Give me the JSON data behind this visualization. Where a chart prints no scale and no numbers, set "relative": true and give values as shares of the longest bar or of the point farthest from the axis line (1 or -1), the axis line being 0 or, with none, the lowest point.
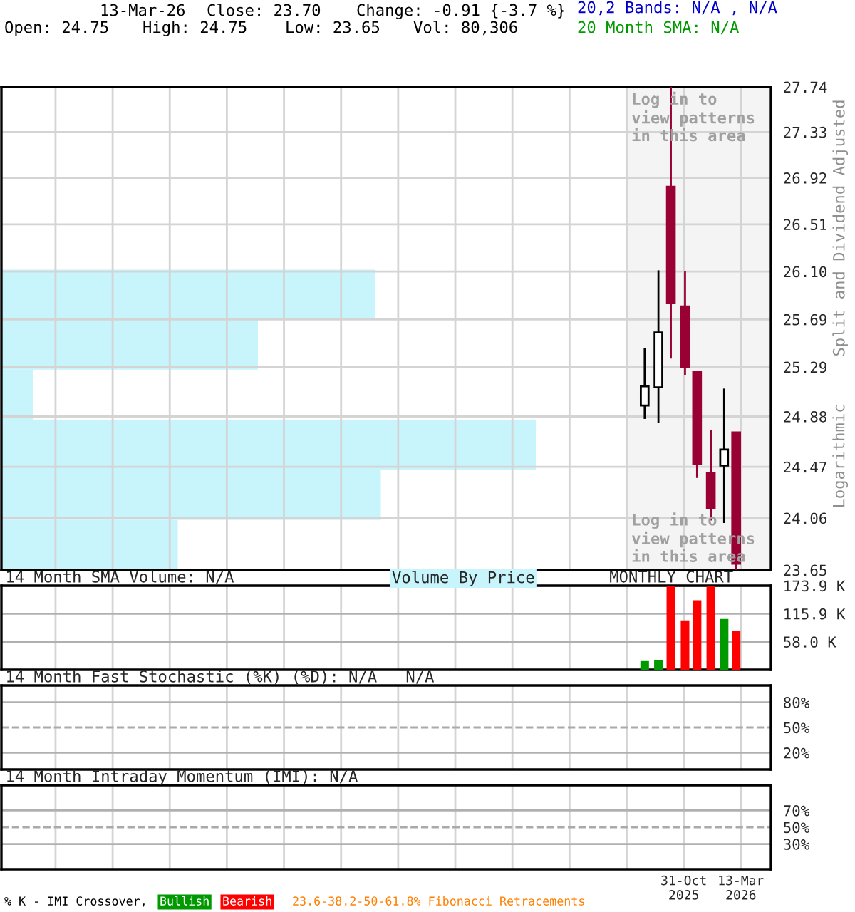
{
  "chart_data": [
    {
      "type": "candlestick",
      "log": true,
      "grid": true,
      "tick_labels": "y",
      "x": [
        "2025-08-01",
        "2025-09-02",
        "2025-10-01",
        "2025-11-03",
        "2025-12-01",
        "2026-01-02",
        "2026-02-02",
        "2026-03-02"
      ],
      "ohlc": [
        [
          24.97,
          25.45,
          24.86,
          25.13
        ],
        [
          25.12,
          26.11,
          24.83,
          25.58
        ],
        [
          26.84,
          27.74,
          25.36,
          25.83
        ],
        [
          25.8,
          26.1,
          25.22,
          25.29
        ],
        [
          25.25,
          25.25,
          24.38,
          24.49
        ],
        [
          24.42,
          24.77,
          24.04,
          24.14
        ],
        [
          24.48,
          25.11,
          24.02,
          24.61
        ],
        [
          24.75,
          24.75,
          23.65,
          23.7
        ]
      ],
      "colors": [
        "#000000",
        "#000000",
        "#990033",
        "#990033",
        "#990033",
        "#990033",
        "#000000",
        "#990033"
      ],
      "ylim": [
        23.65,
        27.74
      ],
      "yticks": [
        23.65,
        24.06,
        24.47,
        24.88,
        25.29,
        {
          "value": 25.69,
          "label": "25.69"
        },
        {
          "value": 26.1,
          "label": "26.10"
        },
        26.51,
        26.92,
        27.33,
        27.74
      ],
      "xlim": [
        "2021-06-25",
        "2026-05-22"
      ],
      "xticks": [
        {
          "value": "2021-10-29",
          "label": null
        },
        {
          "value": "2022-03-11",
          "label": null
        },
        {
          "value": "2022-07-22",
          "label": null
        },
        {
          "value": "2022-12-02",
          "label": null
        },
        {
          "value": "2023-04-14",
          "label": null
        },
        {
          "value": "2023-08-25",
          "label": null
        },
        {
          "value": "2024-01-05",
          "label": null
        },
        {
          "value": "2024-05-17",
          "label": null
        },
        {
          "value": "2024-09-27",
          "label": null
        },
        {
          "value": "2025-02-07",
          "label": null
        },
        {
          "value": "2025-06-20",
          "label": null
        },
        {
          "value": "2025-10-31",
          "label": null
        },
        {
          "value": "2026-03-13",
          "label": null
        }
      ],
      "ylabel": "Split and Dividend Adjusted",
      "bands": [
        {
          "axis": "x",
          "from": "2025-06-23",
          "to": "2026-05-22",
          "label": "Log in to\nview patterns\nin this area",
          "color": "#f4f4f4"
        }
      ],
      "annotations": [
        "13-Mar-26",
        "Close: 23.70",
        "Change: -0.91 {-3.7 %}",
        "20,2 Bands: N/A , N/A",
        "Open: 24.75",
        "High: 24.75",
        "Low: 23.65",
        "Vol: 80,306",
        "20 Month SMA: N/A",
        "Logarithmic",
        "Log in to\nview patterns\nin this area"
      ]
    },
    {
      "type": "bar",
      "orientation": "horizontal",
      "relative": true,
      "title": "Volume By Price",
      "color": "#c8f4fc",
      "categories": [
        null,
        null,
        null,
        null,
        null,
        null
      ],
      "values": [
        0.7,
        0.48,
        0.06,
        1,
        0.71,
        0.33
      ]
    },
    {
      "type": "bar",
      "title": "14 Month SMA Volume: N/A",
      "grid": true,
      "tick_labels": "y",
      "x": [
        "2025-08-01",
        "2025-09-02",
        "2025-10-01",
        "2025-11-03",
        "2025-12-01",
        "2026-01-02",
        "2026-02-02",
        "2026-03-02"
      ],
      "values": [
        18,
        20,
        173.9,
        102,
        143.6,
        173.9,
        105,
        80.3
      ],
      "colors": [
        "#009900",
        "#009900",
        "#ff0000",
        "#ff0000",
        "#ff0000",
        "#ff0000",
        "#009900",
        "#ff0000"
      ],
      "ylim": [
        0,
        173.9
      ],
      "yticks": [
        {
          "value": 58.0,
          "label": "58.0 K"
        },
        {
          "value": 115.9,
          "label": "115.9 K"
        },
        {
          "value": 173.9,
          "label": "173.9 K"
        }
      ],
      "xlim": [
        "2021-06-25",
        "2026-05-22"
      ],
      "xticks": [
        {
          "value": "2021-10-29",
          "label": null
        },
        {
          "value": "2022-03-11",
          "label": null
        },
        {
          "value": "2022-07-22",
          "label": null
        },
        {
          "value": "2022-12-02",
          "label": null
        },
        {
          "value": "2023-04-14",
          "label": null
        },
        {
          "value": "2023-08-25",
          "label": null
        },
        {
          "value": "2024-01-05",
          "label": null
        },
        {
          "value": "2024-05-17",
          "label": null
        },
        {
          "value": "2024-09-27",
          "label": null
        },
        {
          "value": "2025-02-07",
          "label": null
        },
        {
          "value": "2025-06-20",
          "label": null
        },
        {
          "value": "2025-10-31",
          "label": null
        },
        {
          "value": "2026-03-13",
          "label": null
        }
      ],
      "annotations": [
        "MONTHLY CHART"
      ]
    },
    {
      "type": "line",
      "title": "14 Month Fast Stochastic (%K) (%D): N/A   N/A",
      "grid": true,
      "tick_labels": "y",
      "ylim": [
        0,
        100
      ],
      "yticks": [
        {
          "value": 20,
          "label": "20%"
        },
        {
          "value": 50,
          "label": "50%"
        },
        {
          "value": 80,
          "label": "80%"
        }
      ],
      "xlim": [
        "2021-06-25",
        "2026-05-22"
      ],
      "xticks": [
        {
          "value": "2021-10-29",
          "label": null
        },
        {
          "value": "2022-03-11",
          "label": null
        },
        {
          "value": "2022-07-22",
          "label": null
        },
        {
          "value": "2022-12-02",
          "label": null
        },
        {
          "value": "2023-04-14",
          "label": null
        },
        {
          "value": "2023-08-25",
          "label": null
        },
        {
          "value": "2024-01-05",
          "label": null
        },
        {
          "value": "2024-05-17",
          "label": null
        },
        {
          "value": "2024-09-27",
          "label": null
        },
        {
          "value": "2025-02-07",
          "label": null
        },
        {
          "value": "2025-06-20",
          "label": null
        },
        {
          "value": "2025-10-31",
          "label": null
        },
        {
          "value": "2026-03-13",
          "label": null
        }
      ],
      "ref_lines": [
        {
          "axis": "y",
          "value": 50,
          "line_style": "dashed",
          "color": "#aaaaaa"
        }
      ]
    },
    {
      "type": "line",
      "title": "14 Month Intraday Momentum (IMI): N/A",
      "grid": true,
      "ylim": [
        0,
        100
      ],
      "yticks": [
        {
          "value": 30,
          "label": "30%"
        },
        {
          "value": 50,
          "label": "50%"
        },
        {
          "value": 70,
          "label": "70%"
        }
      ],
      "xlim": [
        "2021-06-25",
        "2026-05-22"
      ],
      "xticks": [
        {
          "value": "2021-10-29",
          "label": null
        },
        {
          "value": "2022-03-11",
          "label": null
        },
        {
          "value": "2022-07-22",
          "label": null
        },
        {
          "value": "2022-12-02",
          "label": null
        },
        {
          "value": "2023-04-14",
          "label": null
        },
        {
          "value": "2023-08-25",
          "label": null
        },
        {
          "value": "2024-01-05",
          "label": null
        },
        {
          "value": "2024-05-17",
          "label": null
        },
        {
          "value": "2024-09-27",
          "label": null
        },
        {
          "value": "2025-02-07",
          "label": null
        },
        {
          "value": "2025-06-20",
          "label": null
        },
        {
          "value": "2025-10-31",
          "label": "31-Oct\n2025"
        },
        {
          "value": "2026-03-13",
          "label": "13-Mar\n2026"
        }
      ],
      "ref_lines": [
        {
          "axis": "y",
          "value": 50,
          "line_style": "dashed",
          "color": "#aaaaaa"
        }
      ],
      "annotations": [
        "% K - IMI Crossover,",
        "Bullish",
        "Bearish",
        "23.6-38.2-50-61.8% Fibonacci Retracements"
      ]
    }
  ]
}
